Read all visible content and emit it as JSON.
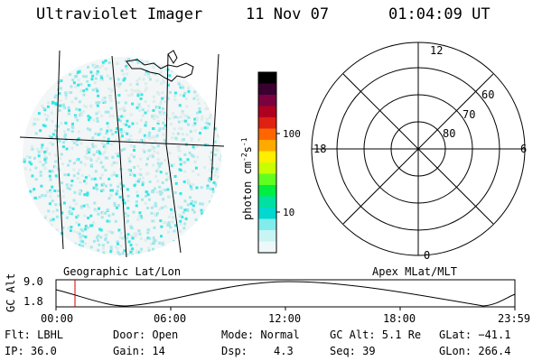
{
  "header": {
    "instrument": "Ultraviolet Imager",
    "date": "11 Nov 07",
    "time": "01:04:09 UT"
  },
  "colorbar": {
    "label": "photon cm",
    "label_sup1": "-2",
    "label_mid": "s",
    "label_sup2": "-1",
    "tick_100": "100",
    "tick_10": "10",
    "colors": [
      "#000000",
      "#3a0030",
      "#7a0040",
      "#b00020",
      "#e02010",
      "#ff6600",
      "#ffaa00",
      "#ffee00",
      "#c8ff00",
      "#60ff20",
      "#00ee40",
      "#00e0a0",
      "#00d8d0",
      "#80ecec",
      "#c8f4f4",
      "#eef8f8"
    ]
  },
  "left_panel": {
    "caption": "Geographic Lat/Lon",
    "auroral_color": "#39e6e6"
  },
  "polar_plot": {
    "caption": "Apex MLat/MLT",
    "mlt_top": "12",
    "mlt_left": "18",
    "mlt_right": "6",
    "mlt_bottom": "0",
    "lat_60": "60",
    "lat_70": "70",
    "lat_80": "80"
  },
  "orbit_plot": {
    "ylabel": "GC Alt",
    "y_top": "9.0",
    "y_bottom": "1.8",
    "x_ticks": [
      "00:00",
      "06:00",
      "12:00",
      "18:00",
      "23:59"
    ],
    "marker_color": "#cc0000"
  },
  "info": {
    "filter": "Flt: LBHL",
    "ip": "IP: 36.0",
    "door": "Door: Open",
    "gain": "Gain: 14",
    "mode": "Mode: Normal",
    "dsp_label": "Dsp:",
    "dsp_value": "4.3",
    "gc_alt": "GC Alt: 5.1 Re",
    "seq": "Seq: 39",
    "glat": "GLat: −41.1",
    "glon": "GLon: 266.4"
  }
}
